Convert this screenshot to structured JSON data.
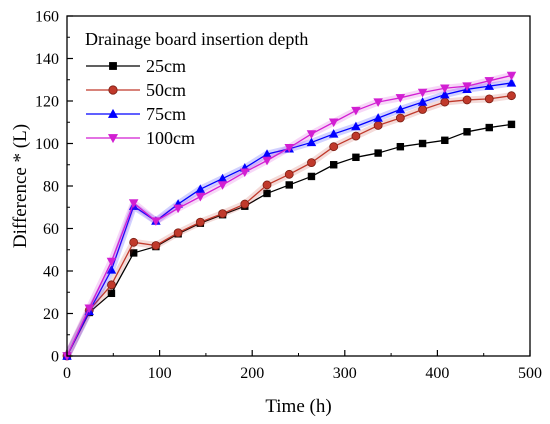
{
  "chart_data": {
    "type": "line",
    "xlabel": "Time (h)",
    "ylabel": "Difference * (L)",
    "xlim": [
      0,
      500
    ],
    "ylim": [
      0,
      160
    ],
    "xticks": [
      0,
      100,
      200,
      300,
      400,
      500
    ],
    "yticks": [
      0,
      20,
      40,
      60,
      80,
      100,
      120,
      140,
      160
    ],
    "grid": false,
    "legend": {
      "title": "Drainage board insertion depth",
      "placement": "top-left"
    },
    "x": [
      0,
      24,
      48,
      72,
      96,
      120,
      144,
      168,
      192,
      216,
      240,
      264,
      288,
      312,
      336,
      360,
      384,
      408,
      432,
      456,
      480
    ],
    "series": [
      {
        "name": "25cm",
        "color": "#000000",
        "marker": "square",
        "values": [
          0,
          20.5,
          29.5,
          48.5,
          51.5,
          57.5,
          62.5,
          66.5,
          70.5,
          76.5,
          80.5,
          84.5,
          90,
          93.5,
          95.5,
          98.5,
          100,
          101.5,
          105.5,
          107.5,
          109
        ]
      },
      {
        "name": "50cm",
        "color": "#c0392b",
        "marker": "circle",
        "values": [
          0,
          21.5,
          33.5,
          53.5,
          52,
          58,
          63,
          67,
          71.5,
          80.5,
          85.5,
          91,
          98.5,
          103.5,
          108.5,
          112,
          116,
          119.5,
          120.5,
          121,
          122.5
        ]
      },
      {
        "name": "75cm",
        "color": "#0000ff",
        "marker": "triangle-up",
        "values": [
          0,
          21,
          40.5,
          70.5,
          63.5,
          71.5,
          78.5,
          83.5,
          88.5,
          95,
          97.5,
          100.5,
          104.5,
          108,
          112,
          116,
          119.5,
          123,
          125.5,
          127,
          128.5
        ]
      },
      {
        "name": "100cm",
        "color": "#d21fd2",
        "marker": "triangle-down",
        "values": [
          0,
          22.5,
          44.5,
          72,
          63.5,
          69.5,
          75,
          80.5,
          86.5,
          92,
          98,
          104.5,
          110,
          115.5,
          119.5,
          121.5,
          124,
          126,
          127,
          129.5,
          132
        ]
      }
    ]
  }
}
